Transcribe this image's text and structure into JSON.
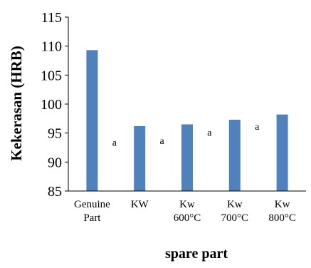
{
  "chart_data": {
    "type": "bar",
    "categories": [
      [
        "Genuine",
        "Part"
      ],
      [
        "KW"
      ],
      [
        "Kw",
        "600°C"
      ],
      [
        "Kw",
        "700°C"
      ],
      [
        "Kw",
        "800°C"
      ]
    ],
    "series": [
      {
        "values": [
          109.3,
          96.2,
          96.5,
          97.3,
          98.2
        ],
        "color": "#4f81bd"
      }
    ],
    "title": "",
    "xlabel": "spare part",
    "ylabel": "Kekerasan (HRB)",
    "ylim": [
      85,
      115
    ],
    "yticks": [
      85,
      90,
      95,
      100,
      105,
      110,
      115
    ],
    "grid": false,
    "legend": "none",
    "stray_marks": [
      {
        "text": "a",
        "category_index": 0,
        "value": 92.8
      },
      {
        "text": "a",
        "category_index": 1,
        "value": 93.1
      },
      {
        "text": "a",
        "category_index": 2,
        "value": 94.5
      },
      {
        "text": "a",
        "category_index": 3,
        "value": 95.6
      }
    ]
  }
}
